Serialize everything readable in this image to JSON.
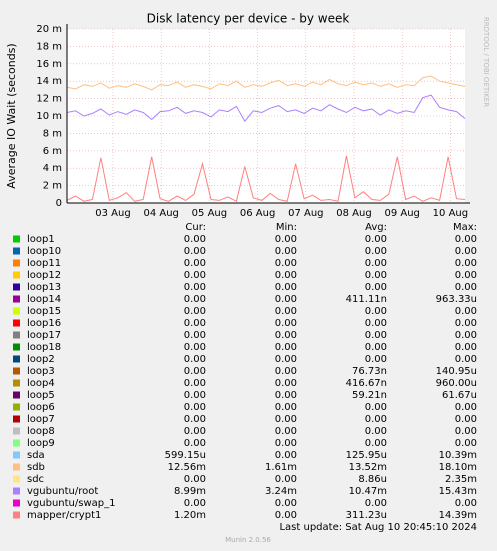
{
  "chart_data": {
    "type": "line",
    "title": "Disk latency per device - by week",
    "y_label": "Average IO Wait (seconds)",
    "side_label": "RRDTOOL / TOBI OETIKER",
    "x_tick_labels": [
      "03 Aug",
      "04 Aug",
      "05 Aug",
      "06 Aug",
      "07 Aug",
      "08 Aug",
      "09 Aug",
      "10 Aug"
    ],
    "ylim": [
      0,
      0.02
    ],
    "yticks": [
      0,
      {
        "value": 0.002,
        "label": "2 m"
      },
      {
        "value": 0.004,
        "label": "4 m"
      },
      {
        "value": 0.006,
        "label": "6 m"
      },
      {
        "value": 0.008,
        "label": "8 m"
      },
      {
        "value": 0.01,
        "label": "10 m"
      },
      {
        "value": 0.012,
        "label": "12 m"
      },
      {
        "value": 0.014,
        "label": "14 m"
      },
      {
        "value": 0.016,
        "label": "16 m"
      },
      {
        "value": 0.018,
        "label": "18 m"
      },
      {
        "value": 0.02,
        "label": "20 m"
      }
    ],
    "grid": true,
    "stat_headers": [
      "Cur:",
      "Min:",
      "Avg:",
      "Max:"
    ],
    "series": [
      {
        "name": "loop1",
        "color": "#00CC00",
        "stats": [
          "0.00",
          "0.00",
          "0.00",
          "0.00"
        ]
      },
      {
        "name": "loop10",
        "color": "#0066B3",
        "stats": [
          "0.00",
          "0.00",
          "0.00",
          "0.00"
        ]
      },
      {
        "name": "loop11",
        "color": "#FF8000",
        "stats": [
          "0.00",
          "0.00",
          "0.00",
          "0.00"
        ]
      },
      {
        "name": "loop12",
        "color": "#FFCC00",
        "stats": [
          "0.00",
          "0.00",
          "0.00",
          "0.00"
        ]
      },
      {
        "name": "loop13",
        "color": "#330099",
        "stats": [
          "0.00",
          "0.00",
          "0.00",
          "0.00"
        ]
      },
      {
        "name": "loop14",
        "color": "#990099",
        "stats": [
          "0.00",
          "0.00",
          "411.11n",
          "963.33u"
        ]
      },
      {
        "name": "loop15",
        "color": "#CCFF00",
        "stats": [
          "0.00",
          "0.00",
          "0.00",
          "0.00"
        ]
      },
      {
        "name": "loop16",
        "color": "#FF0000",
        "stats": [
          "0.00",
          "0.00",
          "0.00",
          "0.00"
        ]
      },
      {
        "name": "loop17",
        "color": "#808080",
        "stats": [
          "0.00",
          "0.00",
          "0.00",
          "0.00"
        ]
      },
      {
        "name": "loop18",
        "color": "#008F00",
        "stats": [
          "0.00",
          "0.00",
          "0.00",
          "0.00"
        ]
      },
      {
        "name": "loop2",
        "color": "#00487D",
        "stats": [
          "0.00",
          "0.00",
          "0.00",
          "0.00"
        ]
      },
      {
        "name": "loop3",
        "color": "#B35A00",
        "stats": [
          "0.00",
          "0.00",
          "76.73n",
          "140.95u"
        ]
      },
      {
        "name": "loop4",
        "color": "#B38F00",
        "stats": [
          "0.00",
          "0.00",
          "416.67n",
          "960.00u"
        ]
      },
      {
        "name": "loop5",
        "color": "#6B006B",
        "stats": [
          "0.00",
          "0.00",
          "59.21n",
          "61.67u"
        ]
      },
      {
        "name": "loop6",
        "color": "#8FB300",
        "stats": [
          "0.00",
          "0.00",
          "0.00",
          "0.00"
        ]
      },
      {
        "name": "loop7",
        "color": "#B30000",
        "stats": [
          "0.00",
          "0.00",
          "0.00",
          "0.00"
        ]
      },
      {
        "name": "loop8",
        "color": "#BEBEBE",
        "stats": [
          "0.00",
          "0.00",
          "0.00",
          "0.00"
        ]
      },
      {
        "name": "loop9",
        "color": "#80FF80",
        "stats": [
          "0.00",
          "0.00",
          "0.00",
          "0.00"
        ]
      },
      {
        "name": "sda",
        "color": "#80C9FF",
        "stats": [
          "599.15u",
          "0.00",
          "125.95u",
          "10.39m"
        ]
      },
      {
        "name": "sdb",
        "color": "#FFC080",
        "stats": [
          "12.56m",
          "1.61m",
          "13.52m",
          "18.10m"
        ],
        "values": [
          0.0133,
          0.0131,
          0.0136,
          0.0134,
          0.0138,
          0.0132,
          0.0135,
          0.0133,
          0.0137,
          0.0134,
          0.013,
          0.0136,
          0.0135,
          0.0139,
          0.0133,
          0.0136,
          0.0134,
          0.0131,
          0.0137,
          0.0135,
          0.014,
          0.0133,
          0.0136,
          0.0134,
          0.0138,
          0.0141,
          0.0135,
          0.0137,
          0.0134,
          0.0139,
          0.0136,
          0.0142,
          0.0137,
          0.0135,
          0.0139,
          0.0136,
          0.0138,
          0.0134,
          0.0137,
          0.0133,
          0.0136,
          0.0135,
          0.0144,
          0.0146,
          0.014,
          0.0138,
          0.0136,
          0.0134
        ]
      },
      {
        "name": "sdc",
        "color": "#FFE680",
        "stats": [
          "0.00",
          "0.00",
          "8.86u",
          "2.35m"
        ]
      },
      {
        "name": "vgubuntu/root",
        "color": "#AA80FF",
        "stats": [
          "8.99m",
          "3.24m",
          "10.47m",
          "15.43m"
        ],
        "values": [
          0.0104,
          0.0106,
          0.01,
          0.0103,
          0.0108,
          0.0101,
          0.0105,
          0.0102,
          0.0107,
          0.0104,
          0.0096,
          0.0105,
          0.0106,
          0.011,
          0.0103,
          0.0106,
          0.0104,
          0.0099,
          0.0107,
          0.0105,
          0.0111,
          0.0094,
          0.0106,
          0.0104,
          0.0109,
          0.0112,
          0.0105,
          0.0107,
          0.0103,
          0.0109,
          0.0106,
          0.0113,
          0.0108,
          0.0104,
          0.011,
          0.0106,
          0.0108,
          0.0101,
          0.0107,
          0.0103,
          0.0106,
          0.0104,
          0.0121,
          0.0124,
          0.011,
          0.0107,
          0.0105,
          0.0097
        ]
      },
      {
        "name": "vgubuntu/swap_1",
        "color": "#EE00CC",
        "stats": [
          "0.00",
          "0.00",
          "0.00",
          "0.00"
        ]
      },
      {
        "name": "mapper/crypt1",
        "color": "#FF8080",
        "stats": [
          "1.20m",
          "0.00",
          "311.23u",
          "14.39m"
        ],
        "values": [
          0.0003,
          0.0008,
          0.0002,
          0.0004,
          0.0052,
          0.0003,
          0.0006,
          0.0012,
          0.0002,
          0.0004,
          0.0053,
          0.0005,
          0.0002,
          0.0008,
          0.0003,
          0.001,
          0.0045,
          0.0004,
          0.0003,
          0.0007,
          0.0002,
          0.0042,
          0.0006,
          0.0003,
          0.0011,
          0.0004,
          0.0002,
          0.0045,
          0.0005,
          0.0009,
          0.0003,
          0.0004,
          0.0002,
          0.0054,
          0.0006,
          0.0013,
          0.0004,
          0.0003,
          0.001,
          0.0053,
          0.0004,
          0.0008,
          0.0002,
          0.0006,
          0.0003,
          0.0053,
          0.0005,
          0.0004
        ]
      }
    ],
    "last_update": "Last update: Sat Aug 10 20:45:10 2024",
    "footer": "Munin 2.0.56"
  }
}
